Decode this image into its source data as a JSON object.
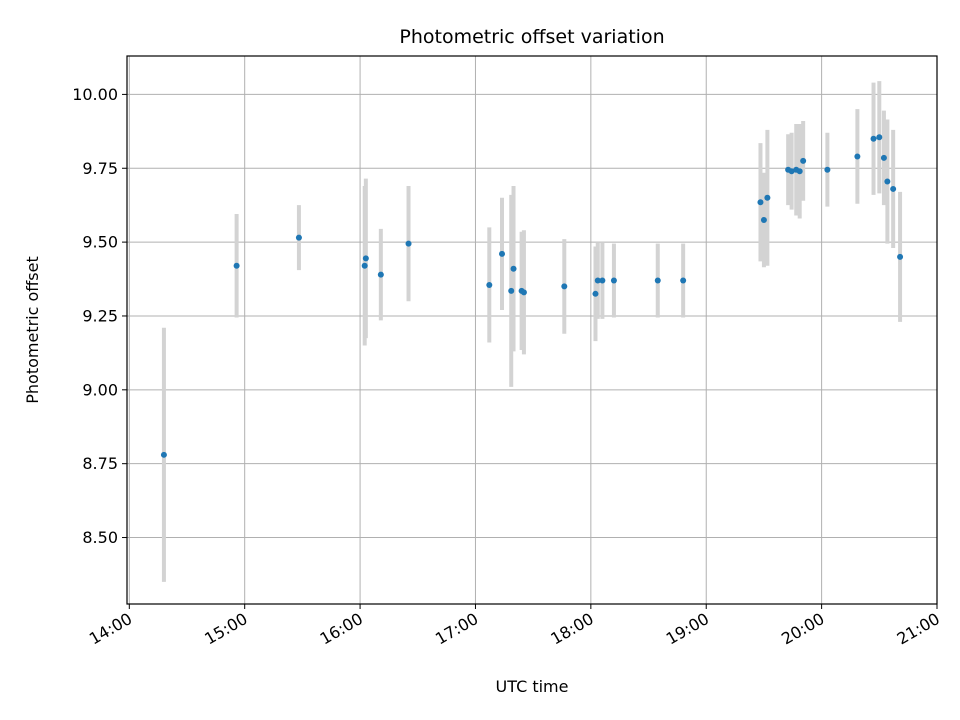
{
  "chart_data": {
    "type": "scatter",
    "title": "Photometric offset variation",
    "xlabel": "UTC time",
    "ylabel": "Photometric offset",
    "grid": true,
    "colors": {
      "point": "#1f77b4",
      "errorbar": "#d3d3d3",
      "grid": "#b0b0b0",
      "axis": "#000000"
    },
    "xlim_hours": [
      13.98,
      21.0
    ],
    "ylim": [
      8.275,
      10.13
    ],
    "x_ticks": [
      {
        "value": 14,
        "label": "14:00"
      },
      {
        "value": 15,
        "label": "15:00"
      },
      {
        "value": 16,
        "label": "16:00"
      },
      {
        "value": 17,
        "label": "17:00"
      },
      {
        "value": 18,
        "label": "18:00"
      },
      {
        "value": 19,
        "label": "19:00"
      },
      {
        "value": 20,
        "label": "20:00"
      },
      {
        "value": 21,
        "label": "21:00"
      }
    ],
    "y_ticks": [
      {
        "value": 8.5,
        "label": "8.50"
      },
      {
        "value": 8.75,
        "label": "8.75"
      },
      {
        "value": 9.0,
        "label": "9.00"
      },
      {
        "value": 9.25,
        "label": "9.25"
      },
      {
        "value": 9.5,
        "label": "9.50"
      },
      {
        "value": 9.75,
        "label": "9.75"
      },
      {
        "value": 10.0,
        "label": "10.00"
      }
    ],
    "points": [
      {
        "t": 14.3,
        "y": 8.78,
        "err": 0.43
      },
      {
        "t": 14.93,
        "y": 9.42,
        "err": 0.175
      },
      {
        "t": 15.47,
        "y": 9.515,
        "err": 0.11
      },
      {
        "t": 16.04,
        "y": 9.42,
        "err": 0.27
      },
      {
        "t": 16.05,
        "y": 9.445,
        "err": 0.27
      },
      {
        "t": 16.18,
        "y": 9.39,
        "err": 0.155
      },
      {
        "t": 16.42,
        "y": 9.495,
        "err": 0.195
      },
      {
        "t": 17.12,
        "y": 9.355,
        "err": 0.195
      },
      {
        "t": 17.23,
        "y": 9.46,
        "err": 0.19
      },
      {
        "t": 17.31,
        "y": 9.335,
        "err": 0.325
      },
      {
        "t": 17.33,
        "y": 9.41,
        "err": 0.28
      },
      {
        "t": 17.4,
        "y": 9.335,
        "err": 0.2
      },
      {
        "t": 17.42,
        "y": 9.33,
        "err": 0.21
      },
      {
        "t": 17.77,
        "y": 9.35,
        "err": 0.16
      },
      {
        "t": 18.04,
        "y": 9.325,
        "err": 0.16
      },
      {
        "t": 18.06,
        "y": 9.37,
        "err": 0.13
      },
      {
        "t": 18.1,
        "y": 9.37,
        "err": 0.13
      },
      {
        "t": 18.2,
        "y": 9.37,
        "err": 0.125
      },
      {
        "t": 18.58,
        "y": 9.37,
        "err": 0.125
      },
      {
        "t": 18.8,
        "y": 9.37,
        "err": 0.125
      },
      {
        "t": 19.47,
        "y": 9.635,
        "err": 0.2
      },
      {
        "t": 19.5,
        "y": 9.575,
        "err": 0.16
      },
      {
        "t": 19.53,
        "y": 9.65,
        "err": 0.23
      },
      {
        "t": 19.71,
        "y": 9.745,
        "err": 0.12
      },
      {
        "t": 19.74,
        "y": 9.74,
        "err": 0.13
      },
      {
        "t": 19.78,
        "y": 9.745,
        "err": 0.155
      },
      {
        "t": 19.81,
        "y": 9.74,
        "err": 0.16
      },
      {
        "t": 19.84,
        "y": 9.775,
        "err": 0.135
      },
      {
        "t": 20.05,
        "y": 9.745,
        "err": 0.125
      },
      {
        "t": 20.31,
        "y": 9.79,
        "err": 0.16
      },
      {
        "t": 20.45,
        "y": 9.85,
        "err": 0.19
      },
      {
        "t": 20.5,
        "y": 9.855,
        "err": 0.19
      },
      {
        "t": 20.54,
        "y": 9.785,
        "err": 0.16
      },
      {
        "t": 20.57,
        "y": 9.705,
        "err": 0.21
      },
      {
        "t": 20.62,
        "y": 9.68,
        "err": 0.2
      },
      {
        "t": 20.68,
        "y": 9.45,
        "err": 0.22
      }
    ]
  }
}
